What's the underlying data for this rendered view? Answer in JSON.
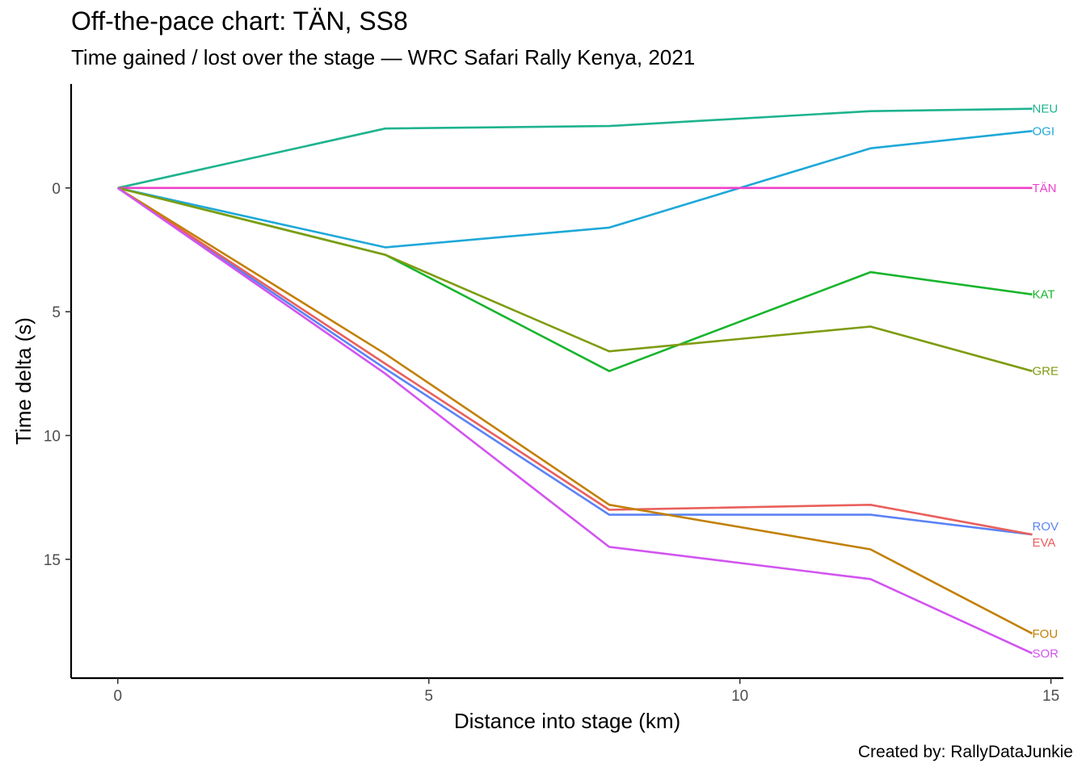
{
  "title": "Off-the-pace chart: TÄN, SS8",
  "subtitle": "Time gained / lost over the stage — WRC Safari Rally Kenya, 2021",
  "caption": "Created by: RallyDataJunkie",
  "chart_data": {
    "type": "line",
    "title": "Off-the-pace chart: TÄN, SS8",
    "subtitle": "Time gained / lost over the stage — WRC Safari Rally Kenya, 2021",
    "xlabel": "Distance into stage (km)",
    "ylabel": "Time delta (s)",
    "xlim": [
      -0.75,
      15.2
    ],
    "ylim": [
      -4.2,
      19.8
    ],
    "y_reversed": true,
    "x_ticks": [
      0,
      5,
      10,
      15
    ],
    "y_ticks": [
      0,
      5,
      10,
      15
    ],
    "grid": false,
    "legend": "none (direct end labels)",
    "x": [
      0,
      4.3,
      7.9,
      12.1,
      14.7
    ],
    "series": [
      {
        "name": "NEU",
        "color": "#1eb38f",
        "values": [
          0,
          -2.4,
          -2.5,
          -3.1,
          -3.2
        ]
      },
      {
        "name": "OGI",
        "color": "#1ea8d8",
        "values": [
          0,
          2.4,
          1.6,
          -1.6,
          -2.3
        ]
      },
      {
        "name": "TÄN",
        "color": "#ee3fcb",
        "values": [
          0,
          0,
          0,
          0,
          0
        ]
      },
      {
        "name": "KAT",
        "color": "#18b52d",
        "values": [
          0,
          2.7,
          7.4,
          3.4,
          4.3
        ]
      },
      {
        "name": "GRE",
        "color": "#7e9c10",
        "values": [
          0,
          2.7,
          6.6,
          5.6,
          7.4
        ]
      },
      {
        "name": "ROV",
        "color": "#5b83f5",
        "values": [
          0,
          7.3,
          13.2,
          13.2,
          14.0
        ]
      },
      {
        "name": "EVA",
        "color": "#e9605c",
        "values": [
          0,
          7.1,
          13.0,
          12.8,
          14.0
        ]
      },
      {
        "name": "FOU",
        "color": "#c28005",
        "values": [
          0,
          6.7,
          12.8,
          14.6,
          18.0
        ]
      },
      {
        "name": "SOR",
        "color": "#d254f0",
        "values": [
          0,
          7.5,
          14.5,
          15.8,
          18.8
        ]
      }
    ],
    "end_label_order": [
      "NEU",
      "OGI",
      "TÄN",
      "KAT",
      "GRE",
      "ROV",
      "EVA",
      "FOU",
      "SOR"
    ]
  }
}
